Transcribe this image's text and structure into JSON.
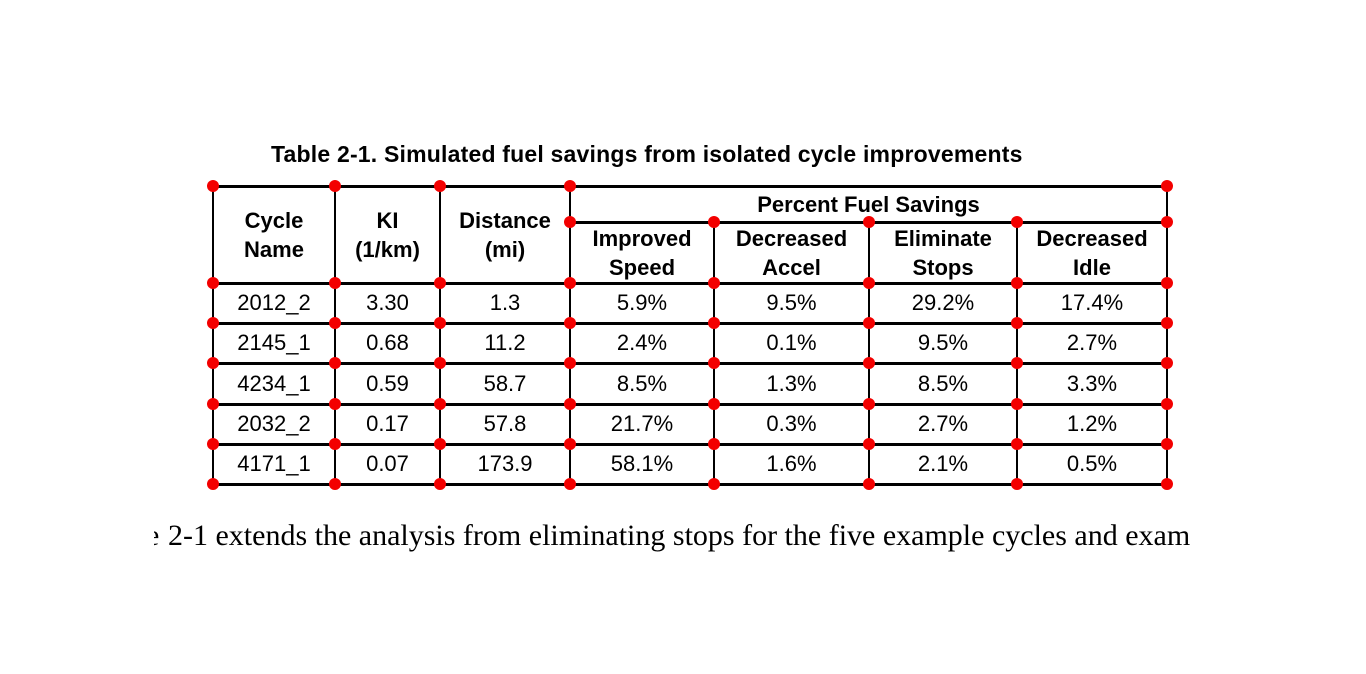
{
  "page": {
    "background_color": "#ffffff",
    "text_color": "#000000"
  },
  "caption": {
    "text": "Table 2-1. Simulated fuel savings from isolated cycle improvements"
  },
  "table": {
    "group_header": "Percent Fuel Savings",
    "column_headers": [
      "Cycle\nName",
      "KI\n(1/km)",
      "Distance\n(mi)",
      "Improved\nSpeed",
      "Decreased\nAccel",
      "Eliminate\nStops",
      "Decreased\nIdle"
    ],
    "rows": [
      [
        "2012_2",
        "3.30",
        "1.3",
        "5.9%",
        "9.5%",
        "29.2%",
        "17.4%"
      ],
      [
        "2145_1",
        "0.68",
        "11.2",
        "2.4%",
        "0.1%",
        "9.5%",
        "2.7%"
      ],
      [
        "4234_1",
        "0.59",
        "58.7",
        "8.5%",
        "1.3%",
        "8.5%",
        "3.3%"
      ],
      [
        "2032_2",
        "0.17",
        "57.8",
        "21.7%",
        "0.3%",
        "2.7%",
        "1.2%"
      ],
      [
        "4171_1",
        "0.07",
        "173.9",
        "58.1%",
        "1.6%",
        "2.1%",
        "0.5%"
      ]
    ]
  },
  "annotations": {
    "dot_color": "#f30000",
    "line_color": "#000000"
  },
  "paragraph": {
    "partial_char": "e",
    "text": "2-1 extends the analysis from eliminating stops for the five example cycles and exam"
  }
}
